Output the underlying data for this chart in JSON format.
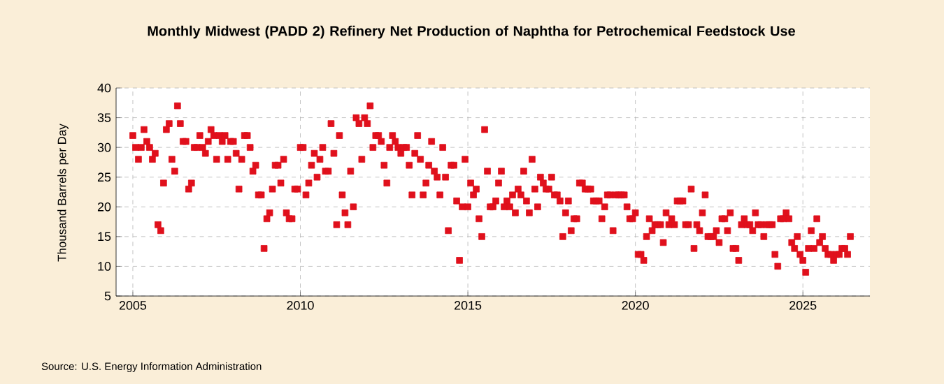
{
  "chart_data": {
    "type": "scatter",
    "title": "Monthly Midwest (PADD 2) Refinery Net Production of Naphtha for Petrochemical Feedstock Use",
    "ylabel": "Thousand Barrels per Day",
    "annotations": [
      "Source: U.S. Energy Information Administration"
    ],
    "x": [
      "2005-01",
      "2005-02",
      "2005-03",
      "2005-04",
      "2005-05",
      "2005-06",
      "2005-07",
      "2005-08",
      "2005-09",
      "2005-10",
      "2005-11",
      "2005-12",
      "2006-01",
      "2006-02",
      "2006-03",
      "2006-04",
      "2006-05",
      "2006-06",
      "2006-07",
      "2006-08",
      "2006-09",
      "2006-10",
      "2006-11",
      "2006-12",
      "2007-01",
      "2007-02",
      "2007-03",
      "2007-04",
      "2007-05",
      "2007-06",
      "2007-07",
      "2007-08",
      "2007-09",
      "2007-10",
      "2007-11",
      "2007-12",
      "2008-01",
      "2008-02",
      "2008-03",
      "2008-04",
      "2008-05",
      "2008-06",
      "2008-07",
      "2008-08",
      "2008-09",
      "2008-10",
      "2008-11",
      "2008-12",
      "2009-01",
      "2009-02",
      "2009-03",
      "2009-04",
      "2009-05",
      "2009-06",
      "2009-07",
      "2009-08",
      "2009-09",
      "2009-10",
      "2009-11",
      "2009-12",
      "2010-01",
      "2010-02",
      "2010-03",
      "2010-04",
      "2010-05",
      "2010-06",
      "2010-07",
      "2010-08",
      "2010-09",
      "2010-10",
      "2010-11",
      "2010-12",
      "2011-01",
      "2011-02",
      "2011-03",
      "2011-04",
      "2011-05",
      "2011-06",
      "2011-07",
      "2011-08",
      "2011-09",
      "2011-10",
      "2011-11",
      "2011-12",
      "2012-01",
      "2012-02",
      "2012-03",
      "2012-04",
      "2012-05",
      "2012-06",
      "2012-07",
      "2012-08",
      "2012-09",
      "2012-10",
      "2012-11",
      "2012-12",
      "2013-01",
      "2013-02",
      "2013-03",
      "2013-04",
      "2013-05",
      "2013-06",
      "2013-07",
      "2013-08",
      "2013-09",
      "2013-10",
      "2013-11",
      "2013-12",
      "2014-01",
      "2014-02",
      "2014-03",
      "2014-04",
      "2014-05",
      "2014-06",
      "2014-07",
      "2014-08",
      "2014-09",
      "2014-10",
      "2014-11",
      "2014-12",
      "2015-01",
      "2015-02",
      "2015-03",
      "2015-04",
      "2015-05",
      "2015-06",
      "2015-07",
      "2015-08",
      "2015-09",
      "2015-10",
      "2015-11",
      "2015-12",
      "2016-01",
      "2016-02",
      "2016-03",
      "2016-04",
      "2016-05",
      "2016-06",
      "2016-07",
      "2016-08",
      "2016-09",
      "2016-10",
      "2016-11",
      "2016-12",
      "2017-01",
      "2017-02",
      "2017-03",
      "2017-04",
      "2017-05",
      "2017-06",
      "2017-07",
      "2017-08",
      "2017-09",
      "2017-10",
      "2017-11",
      "2017-12",
      "2018-01",
      "2018-02",
      "2018-03",
      "2018-04",
      "2018-05",
      "2018-06",
      "2018-07",
      "2018-08",
      "2018-09",
      "2018-10",
      "2018-11",
      "2018-12",
      "2019-01",
      "2019-02",
      "2019-03",
      "2019-04",
      "2019-05",
      "2019-06",
      "2019-07",
      "2019-08",
      "2019-09",
      "2019-10",
      "2019-11",
      "2019-12",
      "2020-01",
      "2020-02",
      "2020-03",
      "2020-04",
      "2020-05",
      "2020-06",
      "2020-07",
      "2020-08",
      "2020-09",
      "2020-10",
      "2020-11",
      "2020-12",
      "2021-01",
      "2021-02",
      "2021-03",
      "2021-04",
      "2021-05",
      "2021-06",
      "2021-07",
      "2021-08",
      "2021-09",
      "2021-10",
      "2021-11",
      "2021-12",
      "2022-01",
      "2022-02",
      "2022-03",
      "2022-04",
      "2022-05",
      "2022-06",
      "2022-07",
      "2022-08",
      "2022-09",
      "2022-10",
      "2022-11",
      "2022-12",
      "2023-01",
      "2023-02",
      "2023-03",
      "2023-04",
      "2023-05",
      "2023-06",
      "2023-07",
      "2023-08",
      "2023-09",
      "2023-10",
      "2023-11",
      "2023-12",
      "2024-01",
      "2024-02",
      "2024-03",
      "2024-04",
      "2024-05",
      "2024-06",
      "2024-07",
      "2024-08",
      "2024-09",
      "2024-10",
      "2024-11",
      "2024-12",
      "2025-01",
      "2025-02",
      "2025-03",
      "2025-04",
      "2025-05",
      "2025-06",
      "2025-07",
      "2025-08",
      "2025-09",
      "2025-10",
      "2025-11",
      "2025-12",
      "2026-01",
      "2026-02",
      "2026-03",
      "2026-04",
      "2026-05",
      "2026-06"
    ],
    "values": [
      32,
      30,
      28,
      30,
      33,
      31,
      30,
      28,
      29,
      17,
      16,
      24,
      33,
      34,
      28,
      26,
      37,
      34,
      31,
      31,
      23,
      24,
      30,
      30,
      32,
      30,
      29,
      31,
      33,
      32,
      28,
      32,
      31,
      32,
      28,
      31,
      31,
      29,
      23,
      28,
      32,
      32,
      30,
      26,
      27,
      22,
      22,
      13,
      18,
      19,
      23,
      27,
      27,
      24,
      28,
      19,
      18,
      18,
      23,
      23,
      30,
      30,
      22,
      24,
      27,
      29,
      25,
      28,
      30,
      26,
      26,
      34,
      29,
      17,
      32,
      22,
      19,
      17,
      26,
      20,
      35,
      34,
      28,
      35,
      34,
      37,
      30,
      32,
      32,
      31,
      27,
      24,
      30,
      32,
      31,
      30,
      29,
      30,
      30,
      27,
      22,
      29,
      32,
      28,
      22,
      24,
      27,
      31,
      26,
      25,
      22,
      30,
      25,
      16,
      27,
      27,
      21,
      11,
      20,
      28,
      20,
      24,
      22,
      23,
      18,
      15,
      33,
      26,
      20,
      20,
      21,
      24,
      26,
      20,
      21,
      20,
      22,
      19,
      23,
      22,
      26,
      21,
      19,
      28,
      23,
      20,
      25,
      24,
      23,
      23,
      25,
      22,
      22,
      21,
      15,
      19,
      21,
      16,
      18,
      18,
      24,
      24,
      23,
      23,
      23,
      21,
      21,
      21,
      18,
      20,
      22,
      22,
      16,
      22,
      22,
      22,
      22,
      20,
      18,
      18,
      19,
      12,
      12,
      11,
      15,
      18,
      16,
      17,
      17,
      17,
      14,
      19,
      17,
      18,
      17,
      21,
      21,
      21,
      17,
      17,
      23,
      13,
      17,
      16,
      19,
      22,
      15,
      15,
      15,
      16,
      14,
      18,
      18,
      16,
      19,
      13,
      13,
      11,
      17,
      18,
      17,
      17,
      16,
      19,
      17,
      17,
      15,
      17,
      17,
      17,
      12,
      10,
      18,
      18,
      19,
      18,
      14,
      13,
      15,
      12,
      11,
      9,
      13,
      16,
      13,
      18,
      14,
      15,
      13,
      12,
      12,
      11,
      12,
      12,
      13,
      13,
      12,
      15
    ],
    "color": "#e0101c",
    "marker": "square",
    "xlim": [
      "2004-07",
      "2027-01"
    ],
    "xticks": [
      "2005",
      "2010",
      "2015",
      "2020",
      "2025"
    ],
    "ylim": [
      5,
      40
    ],
    "yticks": [
      5,
      10,
      15,
      20,
      25,
      30,
      35,
      40
    ],
    "grid": true
  }
}
